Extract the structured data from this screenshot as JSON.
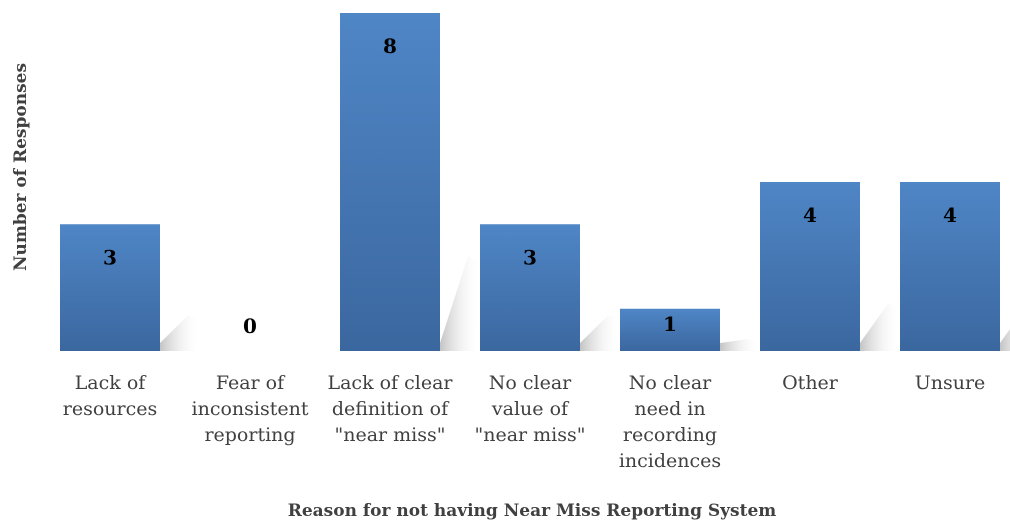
{
  "chart_data": {
    "type": "bar",
    "title": "",
    "xlabel": "Reason for not having Near Miss Reporting System",
    "ylabel": "Number of Responses",
    "categories": [
      [
        "Lack of",
        "resources"
      ],
      [
        "Fear of",
        "inconsistent",
        "reporting"
      ],
      [
        "Lack of clear",
        "definition of",
        "\"near miss\""
      ],
      [
        "No clear",
        "value of",
        "\"near miss\""
      ],
      [
        "No clear",
        "need in",
        "recording",
        "incidences"
      ],
      [
        "Other"
      ],
      [
        "Unsure"
      ]
    ],
    "values": [
      3,
      0,
      8,
      3,
      1,
      4,
      4
    ],
    "ylim": [
      0,
      8
    ],
    "grid": false,
    "legend": "none",
    "bar_color": "#4a7ebb",
    "bar_color_dark": "#3a6399"
  }
}
